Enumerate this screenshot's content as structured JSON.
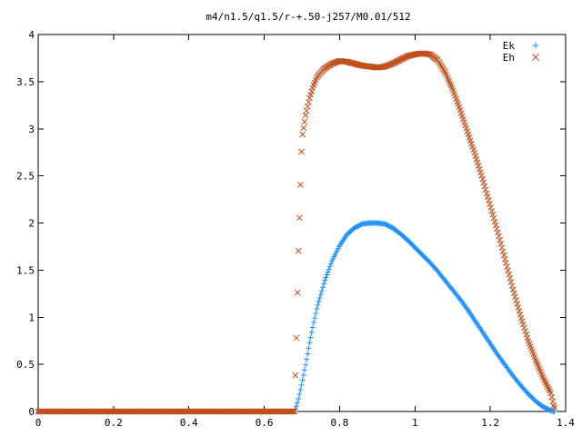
{
  "chart_data": {
    "type": "scatter",
    "title": "m4/n1.5/q1.5/r-+.50-j257/M0.01/512",
    "xlabel": "",
    "ylabel": "",
    "xlim": [
      0,
      1.4
    ],
    "ylim": [
      0,
      4
    ],
    "x_ticks": [
      "0",
      "0.2",
      "0.4",
      "0.6",
      "0.8",
      "1",
      "1.2",
      "1.4"
    ],
    "y_ticks": [
      "0",
      "0.5",
      "1",
      "1.5",
      "2",
      "2.5",
      "3",
      "3.5",
      "4"
    ],
    "grid": false,
    "legend_position": "top-right",
    "x": [
      0.0,
      0.1,
      0.2,
      0.3,
      0.4,
      0.5,
      0.6,
      0.68,
      0.685,
      0.69,
      0.7,
      0.71,
      0.72,
      0.73,
      0.74,
      0.76,
      0.78,
      0.8,
      0.82,
      0.84,
      0.86,
      0.88,
      0.9,
      0.92,
      0.94,
      0.96,
      0.98,
      1.0,
      1.02,
      1.04,
      1.06,
      1.08,
      1.1,
      1.12,
      1.14,
      1.16,
      1.18,
      1.2,
      1.22,
      1.24,
      1.26,
      1.28,
      1.3,
      1.32,
      1.34,
      1.36,
      1.37
    ],
    "series": [
      {
        "name": "Ek",
        "marker": "plus",
        "color": "#1E90FF",
        "values": [
          0,
          0,
          0,
          0,
          0,
          0,
          0,
          0,
          0.05,
          0.12,
          0.3,
          0.5,
          0.72,
          0.92,
          1.1,
          1.38,
          1.6,
          1.76,
          1.88,
          1.95,
          1.99,
          2.0,
          2.0,
          1.99,
          1.95,
          1.89,
          1.82,
          1.74,
          1.66,
          1.58,
          1.49,
          1.39,
          1.29,
          1.19,
          1.08,
          0.96,
          0.84,
          0.72,
          0.6,
          0.49,
          0.38,
          0.28,
          0.19,
          0.11,
          0.05,
          0.01,
          0
        ]
      },
      {
        "name": "Eh",
        "marker": "cross",
        "color": "#C0501C",
        "values": [
          0,
          0,
          0,
          0,
          0,
          0,
          0,
          0,
          0.71,
          1.6,
          2.9,
          3.15,
          3.32,
          3.45,
          3.55,
          3.64,
          3.69,
          3.72,
          3.71,
          3.69,
          3.67,
          3.66,
          3.65,
          3.66,
          3.69,
          3.73,
          3.77,
          3.79,
          3.8,
          3.79,
          3.73,
          3.6,
          3.42,
          3.2,
          2.96,
          2.72,
          2.46,
          2.18,
          1.9,
          1.6,
          1.3,
          1.02,
          0.76,
          0.55,
          0.36,
          0.2,
          0.04
        ]
      }
    ]
  }
}
